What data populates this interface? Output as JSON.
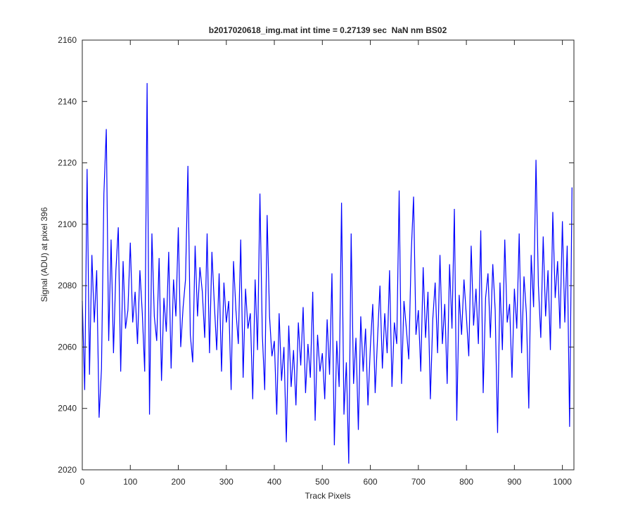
{
  "chart_data": {
    "type": "line",
    "title": "b2017020618_img.mat int time = 0.27139 sec  NaN nm BS02",
    "x_label": "Track Pixels",
    "y_label": "Signal (ADU) at pixel 396",
    "xlim": [
      0,
      1024
    ],
    "ylim": [
      2020,
      2160
    ],
    "xticks": [
      0,
      100,
      200,
      300,
      400,
      500,
      600,
      700,
      800,
      900,
      1000
    ],
    "yticks": [
      2020,
      2040,
      2060,
      2080,
      2100,
      2120,
      2140,
      2160
    ],
    "x": [
      0,
      5,
      10,
      15,
      20,
      25,
      30,
      35,
      40,
      45,
      50,
      55,
      60,
      65,
      70,
      75,
      80,
      85,
      90,
      95,
      100,
      105,
      110,
      115,
      120,
      125,
      130,
      135,
      140,
      145,
      150,
      155,
      160,
      165,
      170,
      175,
      180,
      185,
      190,
      195,
      200,
      205,
      210,
      215,
      220,
      225,
      230,
      235,
      240,
      245,
      250,
      255,
      260,
      265,
      270,
      275,
      280,
      285,
      290,
      295,
      300,
      305,
      310,
      315,
      320,
      325,
      330,
      335,
      340,
      345,
      350,
      355,
      360,
      365,
      370,
      375,
      380,
      385,
      390,
      395,
      400,
      405,
      410,
      415,
      420,
      425,
      430,
      435,
      440,
      445,
      450,
      455,
      460,
      465,
      470,
      475,
      480,
      485,
      490,
      495,
      500,
      505,
      510,
      515,
      520,
      525,
      530,
      535,
      540,
      545,
      550,
      555,
      560,
      565,
      570,
      575,
      580,
      585,
      590,
      595,
      600,
      605,
      610,
      615,
      620,
      625,
      630,
      635,
      640,
      645,
      650,
      655,
      660,
      665,
      670,
      675,
      680,
      685,
      690,
      695,
      700,
      705,
      710,
      715,
      720,
      725,
      730,
      735,
      740,
      745,
      750,
      755,
      760,
      765,
      770,
      775,
      780,
      785,
      790,
      795,
      800,
      805,
      810,
      815,
      820,
      825,
      830,
      835,
      840,
      845,
      850,
      855,
      860,
      865,
      870,
      875,
      880,
      885,
      890,
      895,
      900,
      905,
      910,
      915,
      920,
      925,
      930,
      935,
      940,
      945,
      950,
      955,
      960,
      965,
      970,
      975,
      980,
      985,
      990,
      995,
      1000,
      1005,
      1010,
      1015,
      1020
    ],
    "series": [
      {
        "name": "signal",
        "color": "#0000ff",
        "values": [
          2075,
          2046,
          2118,
          2051,
          2090,
          2068,
          2085,
          2037,
          2053,
          2110,
          2131,
          2062,
          2095,
          2058,
          2085,
          2099,
          2052,
          2088,
          2066,
          2072,
          2094,
          2068,
          2078,
          2061,
          2085,
          2071,
          2052,
          2146,
          2038,
          2097,
          2070,
          2062,
          2089,
          2049,
          2076,
          2065,
          2091,
          2053,
          2082,
          2070,
          2099,
          2060,
          2073,
          2082,
          2119,
          2064,
          2055,
          2093,
          2070,
          2086,
          2078,
          2063,
          2097,
          2058,
          2091,
          2074,
          2059,
          2084,
          2052,
          2081,
          2068,
          2075,
          2046,
          2088,
          2072,
          2061,
          2095,
          2050,
          2079,
          2066,
          2071,
          2043,
          2082,
          2059,
          2110,
          2064,
          2046,
          2103,
          2070,
          2057,
          2062,
          2038,
          2071,
          2049,
          2060,
          2029,
          2067,
          2047,
          2059,
          2041,
          2068,
          2054,
          2073,
          2045,
          2061,
          2050,
          2078,
          2036,
          2064,
          2052,
          2058,
          2043,
          2069,
          2051,
          2084,
          2028,
          2062,
          2047,
          2107,
          2038,
          2055,
          2022,
          2097,
          2048,
          2063,
          2033,
          2070,
          2052,
          2066,
          2041,
          2060,
          2074,
          2045,
          2063,
          2080,
          2053,
          2071,
          2058,
          2085,
          2047,
          2068,
          2061,
          2111,
          2048,
          2075,
          2066,
          2056,
          2090,
          2109,
          2064,
          2072,
          2052,
          2086,
          2063,
          2078,
          2043,
          2069,
          2081,
          2058,
          2090,
          2061,
          2074,
          2048,
          2087,
          2066,
          2105,
          2036,
          2077,
          2064,
          2082,
          2070,
          2057,
          2093,
          2067,
          2079,
          2061,
          2098,
          2045,
          2076,
          2084,
          2063,
          2087,
          2072,
          2032,
          2081,
          2059,
          2095,
          2068,
          2074,
          2050,
          2079,
          2066,
          2097,
          2058,
          2083,
          2071,
          2040,
          2090,
          2073,
          2121,
          2080,
          2063,
          2096,
          2070,
          2085,
          2059,
          2104,
          2076,
          2088,
          2066,
          2101,
          2068,
          2093,
          2034,
          2112
        ]
      }
    ]
  }
}
